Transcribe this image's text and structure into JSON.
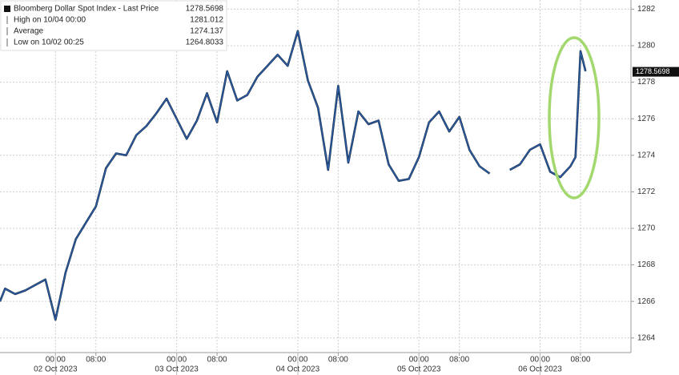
{
  "chart_data": {
    "type": "line",
    "legend": [
      {
        "name": "Bloomberg Dollar Spot Index - Last Price",
        "value": 1278.5698
      },
      {
        "name": "High on 10/04 00:00",
        "value": 1281.012
      },
      {
        "name": "Average",
        "value": 1274.137
      },
      {
        "name": "Low on 10/02 00:25",
        "value": 1264.8033
      }
    ],
    "series": [
      {
        "name": "Bloomberg Dollar Spot Index",
        "color": "#2a5ea8",
        "x": [
          "2023-10-01T13:00",
          "2023-10-01T14:00",
          "2023-10-01T16:00",
          "2023-10-01T18:00",
          "2023-10-01T20:00",
          "2023-10-01T22:00",
          "2023-10-02T00:00",
          "2023-10-02T02:00",
          "2023-10-02T04:00",
          "2023-10-02T06:00",
          "2023-10-02T08:00",
          "2023-10-02T10:00",
          "2023-10-02T12:00",
          "2023-10-02T14:00",
          "2023-10-02T16:00",
          "2023-10-02T18:00",
          "2023-10-02T20:00",
          "2023-10-02T22:00",
          "2023-10-03T00:00",
          "2023-10-03T02:00",
          "2023-10-03T04:00",
          "2023-10-03T06:00",
          "2023-10-03T08:00",
          "2023-10-03T10:00",
          "2023-10-03T12:00",
          "2023-10-03T14:00",
          "2023-10-03T16:00",
          "2023-10-03T18:00",
          "2023-10-03T20:00",
          "2023-10-03T22:00",
          "2023-10-04T00:00",
          "2023-10-04T02:00",
          "2023-10-04T04:00",
          "2023-10-04T06:00",
          "2023-10-04T08:00",
          "2023-10-04T10:00",
          "2023-10-04T12:00",
          "2023-10-04T14:00",
          "2023-10-04T16:00",
          "2023-10-04T18:00",
          "2023-10-04T20:00",
          "2023-10-04T22:00",
          "2023-10-05T00:00",
          "2023-10-05T02:00",
          "2023-10-05T04:00",
          "2023-10-05T06:00",
          "2023-10-05T08:00",
          "2023-10-05T10:00",
          "2023-10-05T12:00",
          "2023-10-05T14:00",
          "2023-10-05T16:00",
          "2023-10-05T18:00",
          "2023-10-05T20:00",
          "2023-10-05T22:00",
          "2023-10-06T00:00",
          "2023-10-06T02:00",
          "2023-10-06T04:00",
          "2023-10-06T06:00",
          "2023-10-06T07:00",
          "2023-10-06T08:00",
          "2023-10-06T09:00"
        ],
        "values": [
          1266.0,
          1266.7,
          1266.4,
          1266.6,
          1266.9,
          1267.2,
          1265.0,
          1267.6,
          1269.4,
          1270.3,
          1271.2,
          1273.3,
          1274.1,
          1274.0,
          1275.1,
          1275.6,
          1276.3,
          1277.1,
          1276.0,
          1274.9,
          1275.9,
          1277.4,
          1275.8,
          1278.6,
          1277.0,
          1277.3,
          1278.3,
          1278.9,
          1279.5,
          1278.9,
          1280.8,
          1278.1,
          1276.6,
          1273.2,
          1277.8,
          1273.6,
          1276.4,
          1275.7,
          1275.9,
          1273.5,
          1272.6,
          1272.7,
          1273.9,
          1275.8,
          1276.4,
          1275.3,
          1276.1,
          1274.3,
          1273.4,
          1273.0,
          null,
          1273.2,
          1273.5,
          1274.3,
          1274.6,
          1273.1,
          1272.8,
          1273.4,
          1273.9,
          1279.7,
          1278.6
        ]
      }
    ],
    "xlim": [
      "2023-10-01T13:00",
      "2023-10-06T18:00"
    ],
    "xticks": [
      {
        "value": "2023-10-02T00:00",
        "label": "00:00"
      },
      {
        "value": "2023-10-02T08:00",
        "label": "08:00"
      },
      {
        "value": "2023-10-03T00:00",
        "label": "00:00"
      },
      {
        "value": "2023-10-03T08:00",
        "label": "08:00"
      },
      {
        "value": "2023-10-04T00:00",
        "label": "00:00"
      },
      {
        "value": "2023-10-04T08:00",
        "label": "08:00"
      },
      {
        "value": "2023-10-05T00:00",
        "label": "00:00"
      },
      {
        "value": "2023-10-05T08:00",
        "label": "08:00"
      },
      {
        "value": "2023-10-06T00:00",
        "label": "00:00"
      },
      {
        "value": "2023-10-06T08:00",
        "label": "08:00"
      }
    ],
    "xdate_labels": [
      {
        "value": "2023-10-02T00:00",
        "label": "02 Oct 2023"
      },
      {
        "value": "2023-10-03T00:00",
        "label": "03 Oct 2023"
      },
      {
        "value": "2023-10-04T00:00",
        "label": "04 Oct 2023"
      },
      {
        "value": "2023-10-05T00:00",
        "label": "05 Oct 2023"
      },
      {
        "value": "2023-10-06T00:00",
        "label": "06 Oct 2023"
      }
    ],
    "ylim": [
      1263.2,
      1282.5
    ],
    "yticks": [
      1264,
      1266,
      1268,
      1270,
      1272,
      1274,
      1276,
      1278,
      1280,
      1282
    ],
    "grid": true
  }
}
